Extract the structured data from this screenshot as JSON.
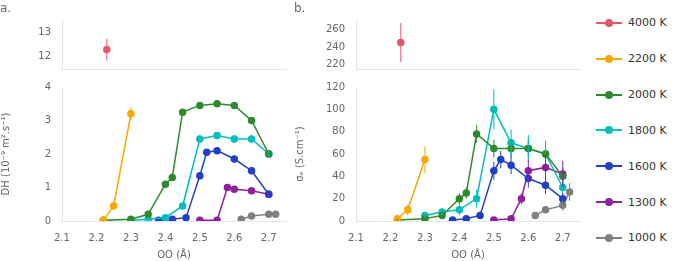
{
  "chart_data": [
    {
      "type": "line",
      "title": "a.",
      "xlim": [
        2.1,
        2.75
      ],
      "xticks": [
        2.1,
        2.2,
        2.3,
        2.4,
        2.5,
        2.6,
        2.7
      ],
      "ylim": [
        11.5,
        13.5
      ],
      "yticks": [
        12,
        13
      ],
      "grid": false,
      "tick_labels": "y",
      "series": [
        {
          "name": "4000 K",
          "color": "#E8546A",
          "x": [
            2.23
          ],
          "values": [
            12.3
          ],
          "yerr": [
            0.45
          ]
        }
      ]
    },
    {
      "type": "line",
      "xlabel": "OO (Å)",
      "ylabel": "DH (10⁻⁹ m².s⁻¹)",
      "xlim": [
        2.1,
        2.75
      ],
      "xticks": [
        2.1,
        2.2,
        2.3,
        2.4,
        2.5,
        2.6,
        2.7
      ],
      "ylim": [
        0,
        4.0
      ],
      "yticks": [
        0,
        1,
        2,
        3,
        4
      ],
      "grid": false,
      "series": [
        {
          "name": "2200 K",
          "color": "#F5A800",
          "x": [
            2.22,
            2.25,
            2.3
          ],
          "values": [
            0.02,
            0.45,
            3.2
          ],
          "yerr": [
            0.01,
            0.05,
            0.2
          ]
        },
        {
          "name": "2000 K",
          "color": "#2D8B2D",
          "x": [
            2.22,
            2.3,
            2.35,
            2.4,
            2.42,
            2.45,
            2.5,
            2.55,
            2.6,
            2.65,
            2.7
          ],
          "values": [
            0.02,
            0.05,
            0.2,
            1.1,
            1.3,
            3.25,
            3.45,
            3.5,
            3.45,
            3.0,
            2.0
          ],
          "yerr": [
            0.01,
            0.01,
            0.05,
            0.1,
            0.1,
            0.1,
            0.08,
            0.08,
            0.08,
            0.1,
            0.1
          ]
        },
        {
          "name": "1800 K",
          "color": "#00BEBE",
          "x": [
            2.3,
            2.35,
            2.4,
            2.45,
            2.5,
            2.55,
            2.6,
            2.65,
            2.7
          ],
          "values": [
            0.02,
            0.05,
            0.1,
            0.45,
            2.45,
            2.55,
            2.45,
            2.45,
            2.0
          ],
          "yerr": [
            0.01,
            0.02,
            0.03,
            0.06,
            0.1,
            0.1,
            0.12,
            0.12,
            0.1
          ]
        },
        {
          "name": "1600 K",
          "color": "#2040C8",
          "x": [
            2.38,
            2.42,
            2.46,
            2.5,
            2.52,
            2.55,
            2.6,
            2.65,
            2.7
          ],
          "values": [
            0.02,
            0.05,
            0.1,
            1.35,
            2.05,
            2.1,
            1.85,
            1.5,
            0.8
          ],
          "yerr": [
            0.01,
            0.01,
            0.02,
            0.1,
            0.1,
            0.1,
            0.1,
            0.1,
            0.1
          ]
        },
        {
          "name": "1300 K",
          "color": "#9020A0",
          "x": [
            2.5,
            2.55,
            2.58,
            2.6,
            2.65,
            2.7
          ],
          "values": [
            0.02,
            0.02,
            1.0,
            0.95,
            0.9,
            0.8
          ],
          "yerr": [
            0.01,
            0.01,
            0.05,
            0.05,
            0.05,
            0.05
          ]
        },
        {
          "name": "1000 K",
          "color": "#808080",
          "x": [
            2.62,
            2.65,
            2.7,
            2.72
          ],
          "values": [
            0.05,
            0.15,
            0.2,
            0.2
          ],
          "yerr": [
            0.01,
            0.02,
            0.02,
            0.02
          ]
        }
      ]
    },
    {
      "type": "line",
      "title": "b.",
      "xlim": [
        2.1,
        2.75
      ],
      "xticks": [
        2.1,
        2.2,
        2.3,
        2.4,
        2.5,
        2.6,
        2.7
      ],
      "ylim": [
        215,
        270
      ],
      "yticks": [
        220,
        240,
        260
      ],
      "grid": false,
      "tick_labels": "y",
      "legend": "right",
      "series": [
        {
          "name": "4000 K",
          "color": "#E8546A",
          "x": [
            2.23
          ],
          "values": [
            245
          ],
          "yerr": [
            22
          ]
        }
      ]
    },
    {
      "type": "line",
      "xlabel": "OO (Å)",
      "ylabel": "σₑ (S.cm⁻¹)",
      "xlim": [
        2.1,
        2.75
      ],
      "xticks": [
        2.1,
        2.2,
        2.3,
        2.4,
        2.5,
        2.6,
        2.7
      ],
      "ylim": [
        0,
        120
      ],
      "yticks": [
        0,
        20,
        40,
        60,
        80,
        100,
        120
      ],
      "grid": false,
      "legend": "right",
      "series": [
        {
          "name": "2200 K",
          "color": "#F5A800",
          "x": [
            2.22,
            2.25,
            2.3
          ],
          "values": [
            2,
            10,
            55
          ],
          "yerr": [
            1,
            5,
            12
          ]
        },
        {
          "name": "2000 K",
          "color": "#2D8B2D",
          "x": [
            2.22,
            2.3,
            2.35,
            2.4,
            2.42,
            2.45,
            2.5,
            2.55,
            2.6,
            2.65,
            2.7
          ],
          "values": [
            1,
            2,
            5,
            20,
            25,
            78,
            65,
            65,
            65,
            60,
            40
          ],
          "yerr": [
            1,
            1,
            2,
            5,
            5,
            8,
            8,
            8,
            8,
            8,
            8
          ]
        },
        {
          "name": "1800 K",
          "color": "#00BEBE",
          "x": [
            2.3,
            2.35,
            2.4,
            2.45,
            2.5,
            2.55,
            2.6,
            2.65,
            2.7
          ],
          "values": [
            5,
            8,
            10,
            20,
            100,
            70,
            65,
            60,
            30
          ],
          "yerr": [
            2,
            3,
            5,
            8,
            18,
            12,
            12,
            12,
            8
          ]
        },
        {
          "name": "1600 K",
          "color": "#2040C8",
          "x": [
            2.38,
            2.42,
            2.46,
            2.5,
            2.52,
            2.55,
            2.6,
            2.65,
            2.7
          ],
          "values": [
            1,
            2,
            5,
            45,
            55,
            50,
            38,
            32,
            20
          ],
          "yerr": [
            1,
            1,
            2,
            8,
            8,
            8,
            8,
            8,
            5
          ]
        },
        {
          "name": "1300 K",
          "color": "#9020A0",
          "x": [
            2.5,
            2.55,
            2.58,
            2.6,
            2.65,
            2.7
          ],
          "values": [
            1,
            2,
            20,
            45,
            48,
            42
          ],
          "yerr": [
            1,
            1,
            5,
            10,
            12,
            12
          ]
        },
        {
          "name": "1000 K",
          "color": "#808080",
          "x": [
            2.62,
            2.65,
            2.7,
            2.72
          ],
          "values": [
            5,
            10,
            14,
            26
          ],
          "yerr": [
            2,
            3,
            5,
            8
          ]
        }
      ]
    }
  ]
}
